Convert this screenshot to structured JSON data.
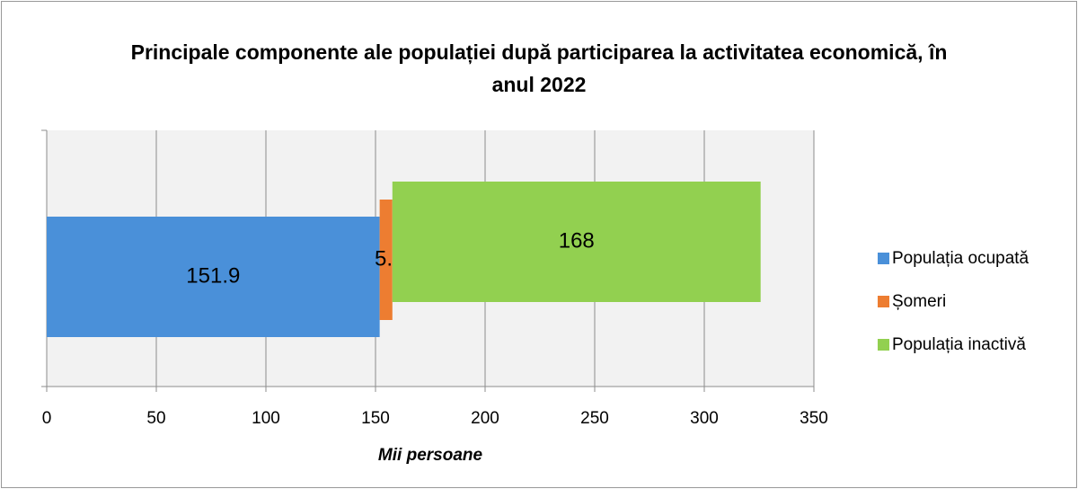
{
  "chart_data": {
    "type": "stacked_bar_horizontal",
    "title": "Principale componente ale populației după participarea la activitatea economică, în anul 2022",
    "categories": [
      null
    ],
    "series": [
      {
        "name": "Populația ocupată",
        "color": "#4a90d9",
        "values": [
          151.9
        ]
      },
      {
        "name": "Șomeri",
        "color": "#ed7d31",
        "values": [
          5.8
        ]
      },
      {
        "name": "Populația inactivă",
        "color": "#92d050",
        "values": [
          168
        ]
      }
    ],
    "xlabel": "Mii persoane",
    "xlim": [
      0,
      350
    ],
    "xticks": [
      0,
      50,
      100,
      150,
      200,
      250,
      300,
      350
    ],
    "grid": true,
    "legend": "right"
  }
}
